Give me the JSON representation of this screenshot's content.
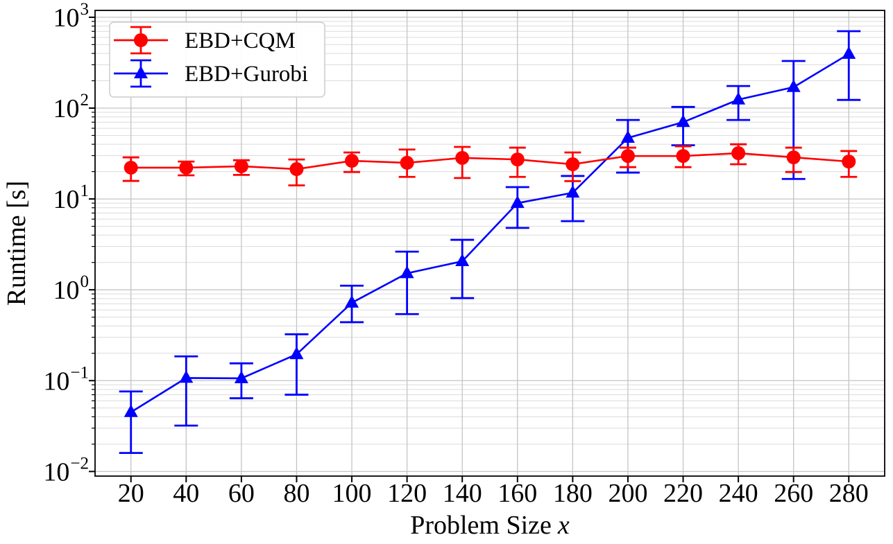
{
  "chart_data": {
    "type": "line",
    "title": "",
    "xlabel": "Problem Size",
    "xlabel_math_symbol": "x",
    "ylabel": "Runtime [s]",
    "xscale": "linear",
    "yscale": "log",
    "xlim": [
      7,
      293
    ],
    "ylim": [
      0.0089,
      1190
    ],
    "xticks": [
      20,
      40,
      60,
      80,
      100,
      120,
      140,
      160,
      180,
      200,
      220,
      240,
      260,
      280
    ],
    "ytick_exponents": [
      3,
      2,
      1,
      0,
      -1,
      -2
    ],
    "grid": "major and minor horizontal log gridlines, major vertical gridlines",
    "legend_position": "upper left",
    "x": [
      20,
      40,
      60,
      80,
      100,
      120,
      140,
      160,
      180,
      200,
      220,
      240,
      260,
      280
    ],
    "series": [
      {
        "name": "EBD+CQM",
        "color": "#ff0000",
        "marker": "circle",
        "values": [
          22.1,
          22.1,
          22.9,
          21.3,
          26.3,
          25.0,
          28.3,
          27.2,
          24.1,
          29.7,
          29.7,
          31.9,
          28.7,
          25.8
        ],
        "err_low": [
          15.8,
          18.2,
          18.4,
          14.1,
          19.8,
          17.5,
          17.0,
          17.5,
          15.7,
          22.4,
          22.4,
          24.1,
          19.8,
          17.5
        ],
        "err_high": [
          28.7,
          25.8,
          26.7,
          27.2,
          32.5,
          35.0,
          37.4,
          36.7,
          32.5,
          36.7,
          38.0,
          40.0,
          36.7,
          33.7
        ]
      },
      {
        "name": "EBD+Gurobi",
        "color": "#0000ff",
        "marker": "triangle",
        "values": [
          0.045,
          0.107,
          0.106,
          0.195,
          0.72,
          1.52,
          2.06,
          9.0,
          11.7,
          47,
          70,
          124,
          170,
          394
        ],
        "err_low": [
          0.016,
          0.032,
          0.064,
          0.07,
          0.44,
          0.54,
          0.81,
          4.8,
          5.7,
          19.5,
          39,
          74,
          16.6,
          123
        ],
        "err_high": [
          0.076,
          0.185,
          0.155,
          0.324,
          1.11,
          2.63,
          3.55,
          13.5,
          17.9,
          74,
          103,
          175,
          330,
          703
        ]
      }
    ],
    "colors": {
      "axis": "#000000",
      "grid_major": "#c4c4c4",
      "grid_minor": "#dcdcdc",
      "background": "#ffffff",
      "legend_border": "#cccccc"
    }
  }
}
